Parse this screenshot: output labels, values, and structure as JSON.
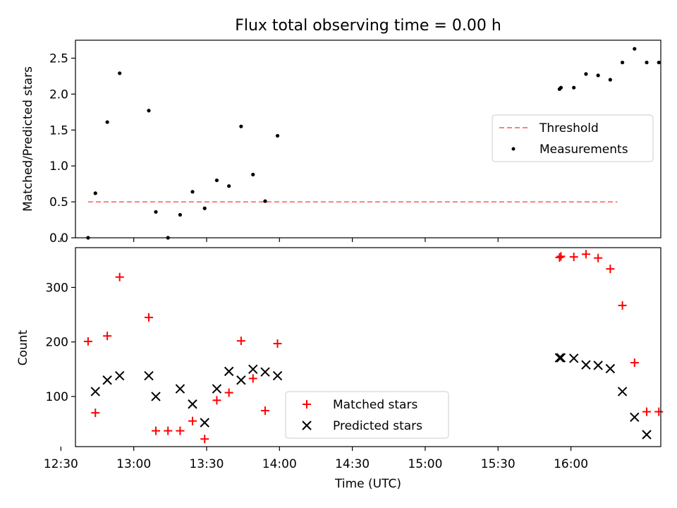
{
  "chart_data": [
    {
      "type": "scatter",
      "title": "Flux total observing time = 0.00 h",
      "xlabel": "",
      "ylabel": "Matched/Predicted stars",
      "xlim_minutes": [
        36,
        277
      ],
      "ylim": [
        0,
        2.75
      ],
      "yticks": [
        0.0,
        0.5,
        1.0,
        1.5,
        2.0,
        2.5
      ],
      "ytick_labels": [
        "0.0",
        "0.5",
        "1.0",
        "1.5",
        "2.0",
        "2.5"
      ],
      "xticks_minutes": [
        30,
        60,
        90,
        120,
        150,
        180,
        210
      ],
      "series": [
        {
          "name": "Threshold",
          "style": "dashed-line",
          "color": "#ff7f7f",
          "x_minutes": [
            41.2,
            259.1
          ],
          "y": [
            0.5,
            0.5
          ]
        },
        {
          "name": "Measurements",
          "style": "dot",
          "color": "#000000",
          "x_minutes": [
            41.2,
            44.2,
            49.1,
            54.2,
            66.2,
            69.1,
            74.1,
            79.1,
            84.2,
            89.2,
            94.2,
            99.2,
            104.2,
            109.1,
            114.1,
            119.2,
            235.3,
            235.9,
            241.2,
            246.2,
            251.2,
            256.2,
            261.2,
            266.2,
            271.2,
            276.2
          ],
          "y": [
            0.0,
            0.62,
            1.61,
            2.29,
            1.77,
            0.36,
            0.0,
            0.32,
            0.64,
            0.41,
            0.8,
            0.72,
            1.55,
            0.88,
            0.51,
            1.42,
            2.07,
            2.09,
            2.09,
            2.28,
            2.26,
            2.2,
            2.44,
            2.63,
            2.44,
            2.44
          ]
        }
      ],
      "legend": {
        "position": "center-right",
        "entries": [
          "Threshold",
          "Measurements"
        ]
      }
    },
    {
      "type": "scatter",
      "title": "",
      "xlabel": "Time (UTC)",
      "ylabel": "Count",
      "xlim_minutes": [
        36,
        277
      ],
      "ylim": [
        8,
        373
      ],
      "yticks": [
        100,
        200,
        300
      ],
      "ytick_labels": [
        "100",
        "200",
        "300"
      ],
      "xticks_minutes": [
        30,
        60,
        90,
        120,
        150,
        180,
        210,
        240
      ],
      "xtick_labels": [
        "12:30",
        "13:00",
        "13:30",
        "14:00",
        "14:30",
        "15:00",
        "15:30",
        "16:00"
      ],
      "series": [
        {
          "name": "Matched stars",
          "marker": "+",
          "color": "#ff0000",
          "x_minutes": [
            41.2,
            44.2,
            49.1,
            54.2,
            66.2,
            69.1,
            74.1,
            79.1,
            84.2,
            89.2,
            94.2,
            99.2,
            104.2,
            109.1,
            114.1,
            119.2,
            235.3,
            235.9,
            241.2,
            246.2,
            251.2,
            256.2,
            261.2,
            266.2,
            271.2,
            276.2
          ],
          "y": [
            201,
            70,
            211,
            319,
            245,
            37,
            37,
            37,
            55,
            22,
            93,
            107,
            202,
            133,
            74,
            197,
            355,
            357,
            356,
            361,
            354,
            334,
            267,
            162,
            72,
            72
          ]
        },
        {
          "name": "Predicted stars",
          "marker": "x",
          "color": "#000000",
          "x_minutes": [
            44.2,
            49.1,
            54.2,
            66.2,
            69.1,
            79.1,
            84.2,
            89.2,
            94.2,
            99.2,
            104.2,
            109.1,
            114.1,
            119.2,
            235.3,
            235.9,
            241.2,
            246.2,
            251.2,
            256.2,
            261.2,
            266.2,
            271.2
          ],
          "y": [
            109,
            130,
            138,
            138,
            100,
            114,
            86,
            52,
            114,
            146,
            130,
            150,
            145,
            138,
            171,
            171,
            170,
            158,
            157,
            151,
            109,
            62,
            30
          ]
        }
      ],
      "legend": {
        "position": "lower-center",
        "entries": [
          "Matched stars",
          "Predicted stars"
        ]
      }
    }
  ]
}
